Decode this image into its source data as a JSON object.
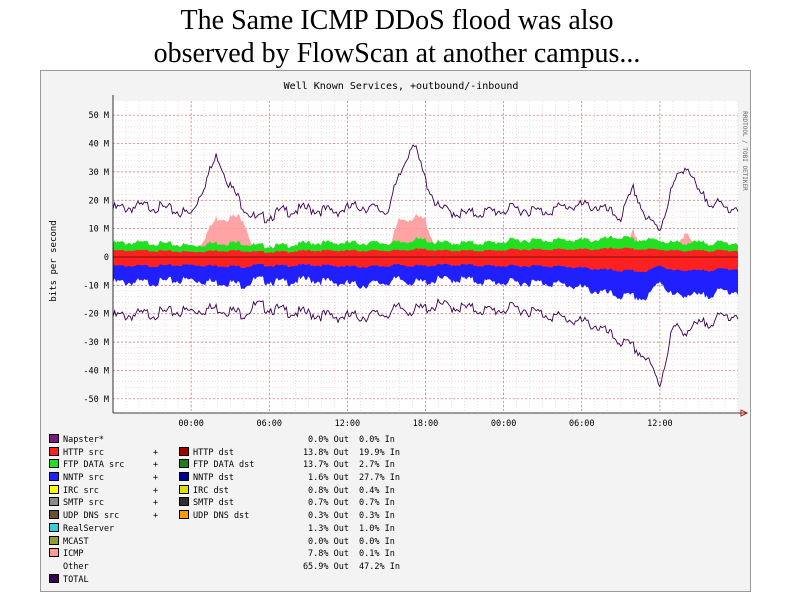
{
  "slide": {
    "title_line1": "The Same ICMP DDoS flood was also",
    "title_line2": "observed by FlowScan at another campus..."
  },
  "chart_data": {
    "type": "area",
    "title": "Well Known Services, +outbound/-inbound",
    "ylabel": "bits per second",
    "side_label": "RRDTOOL / TOBI OETIKER",
    "ylim": [
      -55000000,
      55000000
    ],
    "y_ticks": [
      {
        "label": "50 M",
        "value": 50000000
      },
      {
        "label": "40 M",
        "value": 40000000
      },
      {
        "label": "30 M",
        "value": 30000000
      },
      {
        "label": "20 M",
        "value": 20000000
      },
      {
        "label": "10 M",
        "value": 10000000
      },
      {
        "label": "0",
        "value": 0
      },
      {
        "label": "-10 M",
        "value": -10000000
      },
      {
        "label": "-20 M",
        "value": -20000000
      },
      {
        "label": "-30 M",
        "value": -30000000
      },
      {
        "label": "-40 M",
        "value": -40000000
      },
      {
        "label": "-50 M",
        "value": -50000000
      }
    ],
    "xlim": [
      -3,
      45
    ],
    "x_ticks": [
      {
        "label": "00:00",
        "value": 3
      },
      {
        "label": "06:00",
        "value": 9
      },
      {
        "label": "12:00",
        "value": 15
      },
      {
        "label": "18:00",
        "value": 21
      },
      {
        "label": "00:00",
        "value": 27
      },
      {
        "label": "06:00",
        "value": 33
      },
      {
        "label": "12:00",
        "value": 39
      }
    ],
    "grid": true,
    "series_points": {
      "x": [
        -3,
        0,
        3,
        5,
        6,
        7,
        8,
        10,
        12,
        14,
        16,
        18,
        19,
        20,
        21,
        22,
        24,
        26,
        28,
        30,
        32,
        34,
        36,
        37,
        38,
        39,
        40,
        41,
        42,
        44,
        45
      ],
      "total_out": [
        17,
        18,
        15,
        36,
        25,
        18,
        13,
        16,
        17,
        16,
        18,
        16,
        28,
        41,
        27,
        17,
        15,
        16,
        17,
        16,
        18,
        18,
        14,
        24,
        13,
        10,
        25,
        33,
        22,
        17,
        18
      ],
      "icmp_out": [
        0,
        0,
        0,
        14,
        14,
        14,
        0,
        0,
        0,
        0,
        0,
        0,
        13,
        14,
        13,
        0,
        0,
        0,
        0,
        0,
        0,
        0,
        0,
        9,
        0,
        0,
        0,
        10,
        0,
        0,
        0
      ],
      "other_out": [
        5,
        5,
        4,
        5,
        5,
        5,
        4,
        4,
        5,
        5,
        5,
        5,
        5,
        6,
        6,
        5,
        5,
        5,
        6,
        6,
        6,
        6,
        7,
        6,
        6,
        6,
        5,
        5,
        5,
        5,
        5
      ],
      "total_in": [
        -21,
        -20,
        -19,
        -18,
        -19,
        -20,
        -17,
        -19,
        -20,
        -21,
        -21,
        -20,
        -18,
        -19,
        -18,
        -17,
        -18,
        -19,
        -18,
        -20,
        -22,
        -24,
        -30,
        -32,
        -36,
        -45,
        -25,
        -26,
        -24,
        -21,
        -20
      ],
      "other_in": [
        -9,
        -9,
        -8,
        -9,
        -9,
        -10,
        -8,
        -9,
        -8,
        -9,
        -10,
        -9,
        -8,
        -9,
        -9,
        -8,
        -8,
        -9,
        -9,
        -9,
        -10,
        -12,
        -14,
        -14,
        -15,
        -8,
        -14,
        -13,
        -14,
        -12,
        -12
      ]
    },
    "series": [
      {
        "name": "Napster*",
        "color": "#7a1880",
        "out": "0.0% Out",
        "in": "0.0% In",
        "dst": null
      },
      {
        "name": "HTTP src",
        "color": "#ff2020",
        "out": "13.8% Out",
        "in": "19.9% In",
        "plus": "+",
        "dst": {
          "name": "HTTP dst",
          "color": "#a00000"
        }
      },
      {
        "name": "FTP DATA src",
        "color": "#20e020",
        "out": "13.7% Out",
        "in": "2.7% In",
        "plus": "+",
        "dst": {
          "name": "FTP DATA dst",
          "color": "#208020"
        }
      },
      {
        "name": "NNTP src",
        "color": "#2020ff",
        "out": "1.6% Out",
        "in": "27.7% In",
        "plus": "+",
        "dst": {
          "name": "NNTP dst",
          "color": "#000090"
        }
      },
      {
        "name": "IRC src",
        "color": "#ffff00",
        "out": "0.8% Out",
        "in": "0.4% In",
        "plus": "+",
        "dst": {
          "name": "IRC dst",
          "color": "#e0e000"
        }
      },
      {
        "name": "SMTP src",
        "color": "#8a8a8a",
        "out": "0.7% Out",
        "in": "0.7% In",
        "plus": "+",
        "dst": {
          "name": "SMTP dst",
          "color": "#303030"
        }
      },
      {
        "name": "UDP DNS src",
        "color": "#6a5030",
        "out": "0.3% Out",
        "in": "0.3% In",
        "plus": "+",
        "dst": {
          "name": "UDP DNS dst",
          "color": "#ff9a00"
        }
      },
      {
        "name": "RealServer",
        "color": "#30d0e0",
        "out": "1.3% Out",
        "in": "1.0% In",
        "dst": null
      },
      {
        "name": "MCAST",
        "color": "#90a030",
        "out": "0.0% Out",
        "in": "0.0% In",
        "dst": null
      },
      {
        "name": "ICMP",
        "color": "#ff9a9a",
        "out": "7.8% Out",
        "in": "0.1% In",
        "dst": null
      },
      {
        "name": "Other",
        "color": null,
        "out": "65.9% Out",
        "in": "47.2% In",
        "dst": null
      },
      {
        "name": "TOTAL",
        "color": "#3a0050",
        "out": "",
        "in": "",
        "dst": null
      }
    ]
  }
}
